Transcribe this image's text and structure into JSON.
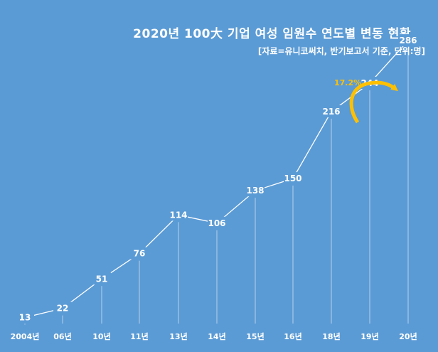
{
  "title": "2020년 100大 기업 여성 임원수 연도별 변동 현황",
  "subtitle": "[자료=유니코써치, 반기보고서 기준, 단위:명]",
  "growth_annotation": "17.2%",
  "colors": {
    "background": "#5b9bd5",
    "line": "#ffffff",
    "annotation": "#ffc000"
  },
  "chart_data": {
    "type": "line",
    "title": "2020년 100大 기업 여성 임원수 연도별 변동 현황",
    "subtitle": "[자료=유니코써치, 반기보고서 기준, 단위:명]",
    "categories": [
      "2004년",
      "06년",
      "10년",
      "11년",
      "13년",
      "14년",
      "15년",
      "16년",
      "18년",
      "19년",
      "20년"
    ],
    "values": [
      13,
      22,
      51,
      76,
      114,
      106,
      138,
      150,
      216,
      244,
      286
    ],
    "ylim": [
      0,
      300
    ],
    "grid": false,
    "legend": "none",
    "data_labels": true,
    "annotation": {
      "text": "17.2%",
      "from": "19년",
      "to": "20년"
    }
  }
}
